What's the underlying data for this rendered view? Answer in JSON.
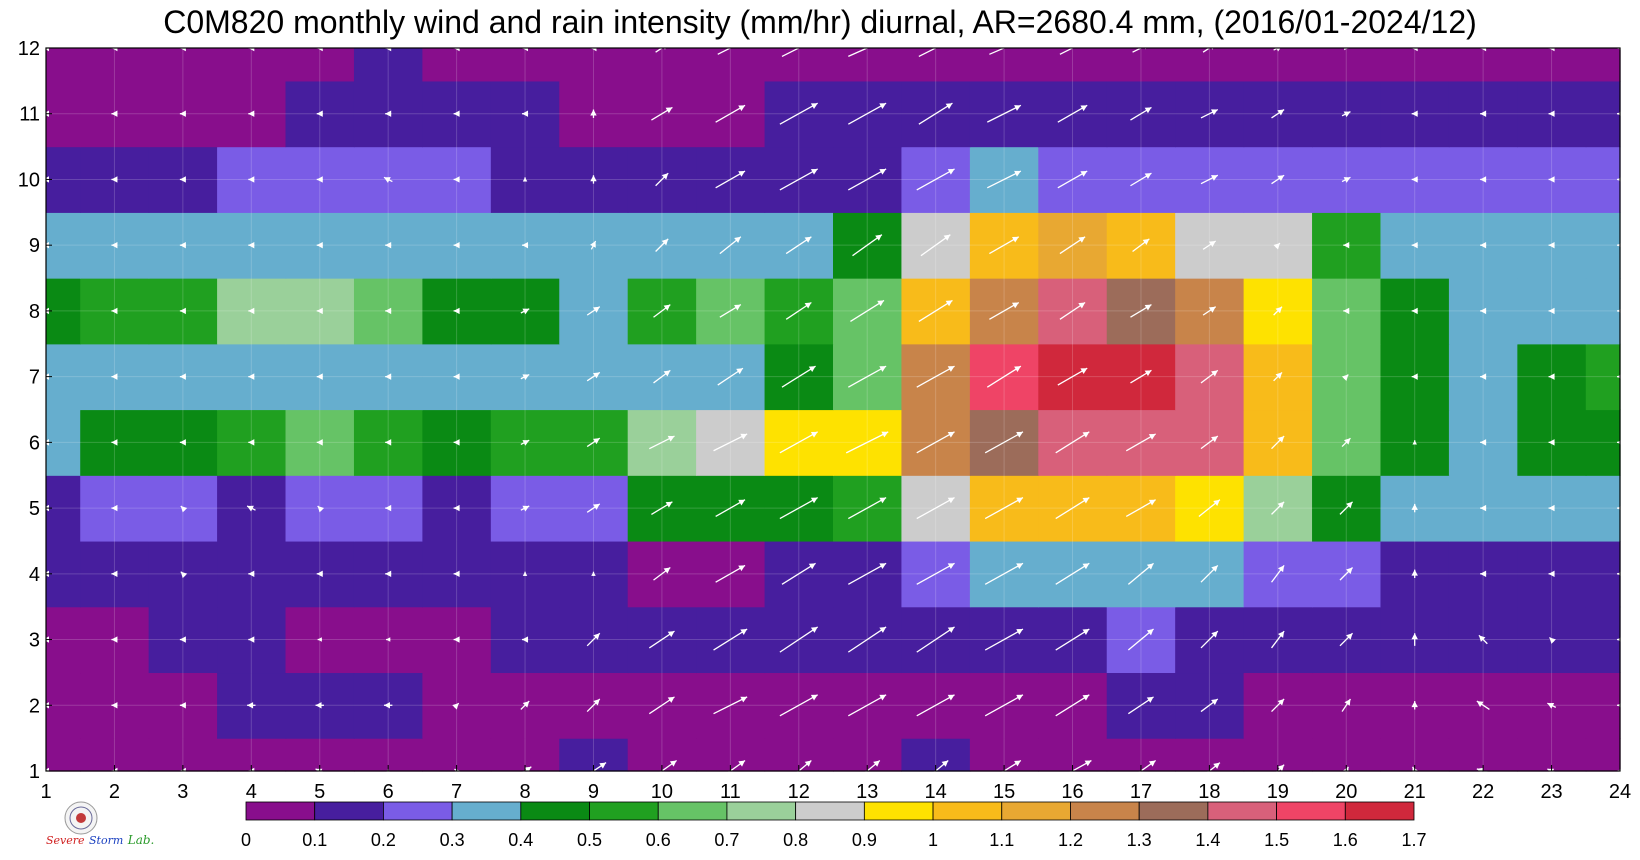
{
  "title": "C0M820 monthly wind and rain intensity (mm/hr) diurnal, AR=2680.4 mm, (2016/01-2024/12)",
  "logo": {
    "brand_text_1": "Severe",
    "brand_text_2": "Storm",
    "brand_text_3": "Lab."
  },
  "chart_data": {
    "type": "contour",
    "title": "C0M820 monthly wind and rain intensity (mm/hr) diurnal, AR=2680.4 mm, (2016/01-2024/12)",
    "xlabel": "",
    "ylabel": "",
    "xlim": [
      1,
      24
    ],
    "ylim": [
      1,
      12
    ],
    "x_ticks": [
      1,
      2,
      3,
      4,
      5,
      6,
      7,
      8,
      9,
      10,
      11,
      12,
      13,
      14,
      15,
      16,
      17,
      18,
      19,
      20,
      21,
      22,
      23,
      24
    ],
    "y_ticks": [
      1,
      2,
      3,
      4,
      5,
      6,
      7,
      8,
      9,
      10,
      11,
      12
    ],
    "grid": true,
    "colorbar": {
      "placement": "bottom",
      "ticks": [
        "0",
        "0.1",
        "0.2",
        "0.3",
        "0.4",
        "0.5",
        "0.6",
        "0.7",
        "0.8",
        "0.9",
        "1",
        "1.1",
        "1.2",
        "1.3",
        "1.4",
        "1.5",
        "1.6",
        "1.7"
      ],
      "colors": [
        "#880e8c",
        "#471e9e",
        "#7a5ce6",
        "#66aece",
        "#0a8a14",
        "#20a020",
        "#66c366",
        "#9ad09a",
        "#cccccc",
        "#fee200",
        "#f8bb1a",
        "#e8a832",
        "#c8844a",
        "#9c6c5a",
        "#d8607a",
        "#ef4466",
        "#d0283c"
      ]
    },
    "rain_intensity_grid": [
      [
        0.05,
        0.05,
        0.05,
        0.05,
        0.05,
        0.05,
        0.05,
        0.05,
        0.1,
        0.05,
        0.05,
        0.05,
        0.05,
        0.1,
        0.05,
        0.05,
        0.05,
        0.05,
        0.05,
        0.05,
        0.05,
        0.05,
        0.05,
        0.05
      ],
      [
        0.05,
        0.05,
        0.05,
        0.15,
        0.15,
        0.15,
        0.05,
        0.05,
        0.05,
        0.05,
        0.05,
        0.05,
        0.05,
        0.05,
        0.05,
        0.05,
        0.15,
        0.15,
        0.05,
        0.05,
        0.05,
        0.05,
        0.05,
        0.05
      ],
      [
        0.05,
        0.05,
        0.1,
        0.15,
        0.05,
        0.05,
        0.05,
        0.15,
        0.15,
        0.15,
        0.15,
        0.15,
        0.15,
        0.15,
        0.15,
        0.15,
        0.25,
        0.15,
        0.15,
        0.15,
        0.15,
        0.15,
        0.1,
        0.15
      ],
      [
        0.15,
        0.15,
        0.1,
        0.15,
        0.15,
        0.15,
        0.15,
        0.15,
        0.15,
        0.05,
        0.05,
        0.15,
        0.15,
        0.25,
        0.35,
        0.35,
        0.35,
        0.35,
        0.25,
        0.25,
        0.15,
        0.15,
        0.15,
        0.15
      ],
      [
        0.15,
        0.25,
        0.25,
        0.15,
        0.25,
        0.25,
        0.15,
        0.25,
        0.25,
        0.45,
        0.45,
        0.45,
        0.55,
        0.85,
        1.0,
        1.0,
        1.0,
        0.95,
        0.75,
        0.45,
        0.35,
        0.35,
        0.35,
        0.35
      ],
      [
        0.35,
        0.45,
        0.45,
        0.55,
        0.65,
        0.55,
        0.45,
        0.55,
        0.55,
        0.75,
        0.85,
        0.95,
        0.95,
        1.25,
        1.35,
        1.45,
        1.45,
        1.45,
        1.05,
        0.65,
        0.45,
        0.35,
        0.45,
        0.45
      ],
      [
        0.35,
        0.35,
        0.35,
        0.35,
        0.35,
        0.35,
        0.35,
        0.35,
        0.35,
        0.35,
        0.35,
        0.45,
        0.65,
        1.25,
        1.55,
        1.6,
        1.6,
        1.45,
        1.05,
        0.65,
        0.45,
        0.35,
        0.45,
        0.55
      ],
      [
        0.45,
        0.55,
        0.55,
        0.75,
        0.75,
        0.65,
        0.45,
        0.45,
        0.35,
        0.55,
        0.65,
        0.55,
        0.65,
        1.05,
        1.25,
        1.45,
        1.35,
        1.25,
        0.95,
        0.65,
        0.45,
        0.35,
        0.35,
        0.35
      ],
      [
        0.35,
        0.35,
        0.35,
        0.35,
        0.35,
        0.35,
        0.35,
        0.35,
        0.35,
        0.35,
        0.35,
        0.35,
        0.45,
        0.85,
        1.05,
        1.15,
        1.05,
        0.85,
        0.85,
        0.55,
        0.35,
        0.35,
        0.35,
        0.35
      ],
      [
        0.15,
        0.15,
        0.15,
        0.25,
        0.25,
        0.25,
        0.25,
        0.15,
        0.15,
        0.15,
        0.15,
        0.15,
        0.15,
        0.25,
        0.35,
        0.25,
        0.25,
        0.25,
        0.25,
        0.25,
        0.25,
        0.25,
        0.25,
        0.25
      ],
      [
        0.05,
        0.05,
        0.05,
        0.05,
        0.15,
        0.15,
        0.15,
        0.15,
        0.05,
        0.05,
        0.05,
        0.15,
        0.15,
        0.15,
        0.15,
        0.15,
        0.15,
        0.15,
        0.15,
        0.15,
        0.15,
        0.15,
        0.15,
        0.15
      ],
      [
        0.05,
        0.05,
        0.05,
        0.05,
        0.05,
        0.15,
        0.05,
        0.05,
        0.05,
        0.05,
        0.05,
        0.05,
        0.05,
        0.05,
        0.05,
        0.05,
        0.05,
        0.05,
        0.05,
        0.05,
        0.05,
        0.05,
        0.05,
        0.05
      ]
    ],
    "wind_vectors_u": [
      [
        0,
        0,
        0,
        0,
        -0.2,
        0,
        -0.1,
        0.3,
        0.6,
        0.7,
        0.7,
        0.6,
        0.6,
        0.6,
        0.8,
        0.9,
        0.7,
        0.5,
        0.3,
        0.1,
        -0.1,
        -0.3,
        -0.2,
        0
      ],
      [
        0,
        0,
        0,
        -0.2,
        -0.2,
        -0.2,
        0.1,
        0.2,
        0.3,
        0.6,
        0.8,
        0.9,
        0.9,
        0.9,
        0.9,
        0.8,
        0.6,
        0.4,
        0.3,
        0.2,
        0,
        -0.3,
        -0.2,
        0
      ],
      [
        0,
        0,
        0,
        0,
        -0.1,
        -0.1,
        0,
        0,
        0.3,
        0.6,
        0.8,
        0.9,
        0.9,
        0.9,
        0.9,
        0.8,
        0.6,
        0.4,
        0.3,
        0.3,
        0,
        -0.2,
        -0.1,
        0
      ],
      [
        0,
        0,
        -0.1,
        0,
        0,
        0,
        0,
        0,
        0,
        0.4,
        0.7,
        0.8,
        0.9,
        0.9,
        0.9,
        0.8,
        0.6,
        0.4,
        0.3,
        0.3,
        0,
        0,
        0,
        0
      ],
      [
        0,
        0,
        -0.1,
        -0.2,
        -0.1,
        0,
        0,
        0.2,
        0.3,
        0.5,
        0.7,
        0.9,
        0.9,
        0.9,
        0.9,
        0.8,
        0.7,
        0.5,
        0.3,
        0.3,
        0,
        0,
        0,
        0
      ],
      [
        0,
        0,
        0,
        0,
        0,
        0,
        0,
        0.2,
        0.3,
        0.6,
        0.8,
        0.9,
        1.0,
        0.9,
        0.9,
        0.8,
        0.7,
        0.4,
        0.3,
        0.2,
        0,
        0,
        0,
        0
      ],
      [
        0,
        0,
        0,
        0,
        0,
        0,
        0,
        0.2,
        0.3,
        0.4,
        0.6,
        0.8,
        0.9,
        0.9,
        0.8,
        0.7,
        0.5,
        0.4,
        0.2,
        0.1,
        0,
        0,
        0,
        0
      ],
      [
        0,
        0,
        0,
        0,
        0,
        0,
        0,
        0.2,
        0.3,
        0.4,
        0.5,
        0.6,
        0.8,
        0.8,
        0.7,
        0.6,
        0.5,
        0.3,
        0.2,
        0,
        0,
        0,
        0,
        0
      ],
      [
        0,
        0,
        0,
        0,
        0,
        0,
        0,
        0,
        0.1,
        0.3,
        0.5,
        0.6,
        0.7,
        0.7,
        0.7,
        0.6,
        0.4,
        0.3,
        0.1,
        0,
        0,
        0,
        0,
        0
      ],
      [
        0,
        0,
        0,
        0,
        0,
        -0.2,
        0,
        0,
        0,
        0.3,
        0.7,
        0.9,
        0.9,
        0.9,
        0.8,
        0.7,
        0.5,
        0.4,
        0.3,
        0.2,
        0,
        0,
        0,
        0
      ],
      [
        0,
        0,
        0,
        0,
        0,
        0,
        0,
        0,
        0,
        0.5,
        0.7,
        0.9,
        0.9,
        0.8,
        0.8,
        0.7,
        0.5,
        0.4,
        0.3,
        0.2,
        0,
        0,
        0,
        0
      ],
      [
        0,
        0,
        0,
        0,
        0,
        0,
        0,
        0,
        0,
        0.3,
        0.6,
        0.8,
        0.9,
        0.8,
        0.7,
        0.6,
        0.4,
        0.3,
        0.2,
        0.1,
        0,
        0,
        0,
        0
      ]
    ],
    "wind_vectors_v": [
      [
        0,
        0,
        0,
        0,
        0.1,
        0.1,
        0.1,
        0.2,
        0.4,
        0.5,
        0.5,
        0.5,
        0.5,
        0.5,
        0.5,
        0.5,
        0.5,
        0.4,
        0.3,
        0.2,
        0.2,
        0.1,
        0.1,
        0
      ],
      [
        0,
        0,
        0,
        0,
        0,
        0,
        0.1,
        0.2,
        0.3,
        0.4,
        0.4,
        0.5,
        0.5,
        0.5,
        0.5,
        0.5,
        0.4,
        0.3,
        0.3,
        0.3,
        0.2,
        0.2,
        0.1,
        0
      ],
      [
        0,
        0,
        0,
        0,
        0,
        0,
        0,
        0,
        0.3,
        0.4,
        0.5,
        0.6,
        0.6,
        0.6,
        0.5,
        0.5,
        0.5,
        0.4,
        0.4,
        0.3,
        0.3,
        0.2,
        0.1,
        0
      ],
      [
        0,
        0,
        0.1,
        0,
        0,
        0,
        0,
        0.1,
        0.1,
        0.3,
        0.4,
        0.5,
        0.5,
        0.5,
        0.5,
        0.5,
        0.5,
        0.4,
        0.4,
        0.3,
        0.2,
        0,
        0,
        0
      ],
      [
        0,
        0,
        0.1,
        0.1,
        0.1,
        0,
        0,
        0.1,
        0.2,
        0.3,
        0.4,
        0.5,
        0.5,
        0.5,
        0.5,
        0.5,
        0.4,
        0.4,
        0.3,
        0.3,
        0.2,
        0,
        0,
        0
      ],
      [
        0,
        0,
        0,
        0,
        0,
        0,
        0,
        0.1,
        0.2,
        0.3,
        0.4,
        0.5,
        0.5,
        0.5,
        0.5,
        0.5,
        0.4,
        0.3,
        0.3,
        0.2,
        0.1,
        0,
        0,
        0
      ],
      [
        0,
        0,
        0,
        0,
        0,
        0,
        0,
        0.1,
        0.2,
        0.3,
        0.4,
        0.5,
        0.5,
        0.5,
        0.5,
        0.4,
        0.3,
        0.3,
        0.2,
        0.1,
        0,
        0,
        0,
        0
      ],
      [
        0,
        0,
        0,
        0,
        0,
        0,
        0,
        0.1,
        0.2,
        0.3,
        0.3,
        0.4,
        0.5,
        0.5,
        0.4,
        0.4,
        0.3,
        0.2,
        0.2,
        0,
        0,
        0,
        0,
        0
      ],
      [
        0,
        0,
        0,
        0,
        0,
        0,
        0,
        0,
        0.2,
        0.3,
        0.4,
        0.4,
        0.5,
        0.5,
        0.4,
        0.4,
        0.3,
        0.2,
        0.1,
        0,
        0,
        0,
        0,
        0
      ],
      [
        0,
        0,
        0,
        0,
        0,
        0.1,
        0,
        0.1,
        0.2,
        0.3,
        0.4,
        0.5,
        0.5,
        0.5,
        0.4,
        0.4,
        0.3,
        0.2,
        0.2,
        0.1,
        0,
        0,
        0,
        0
      ],
      [
        0,
        0,
        0,
        0,
        0,
        0,
        0,
        0,
        0.2,
        0.3,
        0.4,
        0.5,
        0.5,
        0.5,
        0.4,
        0.4,
        0.3,
        0.2,
        0.2,
        0.1,
        0,
        0,
        0,
        0
      ],
      [
        0,
        0,
        0,
        0,
        0,
        0,
        0,
        0,
        0,
        0.2,
        0.3,
        0.4,
        0.4,
        0.4,
        0.3,
        0.3,
        0.2,
        0.2,
        0.1,
        0,
        0,
        0,
        0,
        0
      ]
    ],
    "contour_labels": [
      "0.1",
      "0.2",
      "0.3",
      "0.4",
      "0.5",
      "0.6",
      "0.7",
      "0.8",
      "0.9",
      "1",
      "1.1",
      "1.2",
      "1.3",
      "1.4",
      "1.5",
      "1.6"
    ]
  }
}
